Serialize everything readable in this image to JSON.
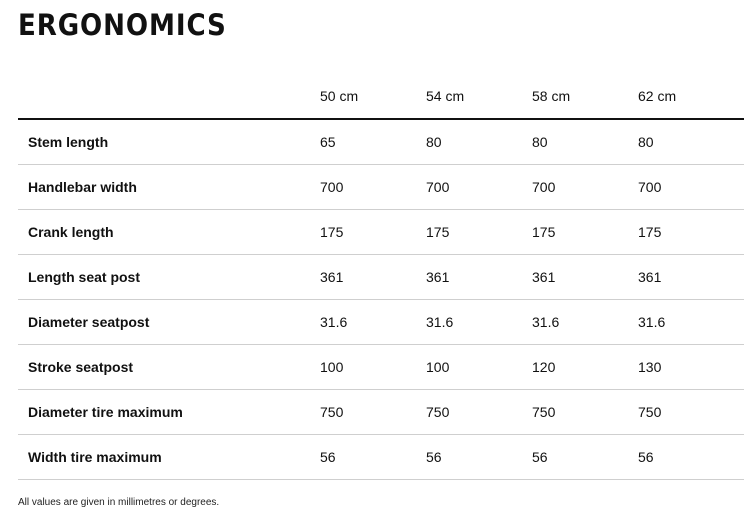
{
  "title": "ERGONOMICS",
  "table": {
    "columns": [
      "",
      "50 cm",
      "54 cm",
      "58 cm",
      "62 cm"
    ],
    "rows": [
      {
        "label": "Stem length",
        "values": [
          "65",
          "80",
          "80",
          "80"
        ]
      },
      {
        "label": "Handlebar width",
        "values": [
          "700",
          "700",
          "700",
          "700"
        ]
      },
      {
        "label": "Crank length",
        "values": [
          "175",
          "175",
          "175",
          "175"
        ]
      },
      {
        "label": "Length seat post",
        "values": [
          "361",
          "361",
          "361",
          "361"
        ]
      },
      {
        "label": "Diameter seatpost",
        "values": [
          "31.6",
          "31.6",
          "31.6",
          "31.6"
        ]
      },
      {
        "label": "Stroke seatpost",
        "values": [
          "100",
          "100",
          "120",
          "130"
        ]
      },
      {
        "label": "Diameter tire maximum",
        "values": [
          "750",
          "750",
          "750",
          "750"
        ]
      },
      {
        "label": "Width tire maximum",
        "values": [
          "56",
          "56",
          "56",
          "56"
        ]
      }
    ]
  },
  "footnote": "All values are given in millimetres or degrees.",
  "colors": {
    "text": "#111111",
    "header_rule": "#111111",
    "row_rule": "#cfcfcf",
    "background": "#ffffff"
  }
}
